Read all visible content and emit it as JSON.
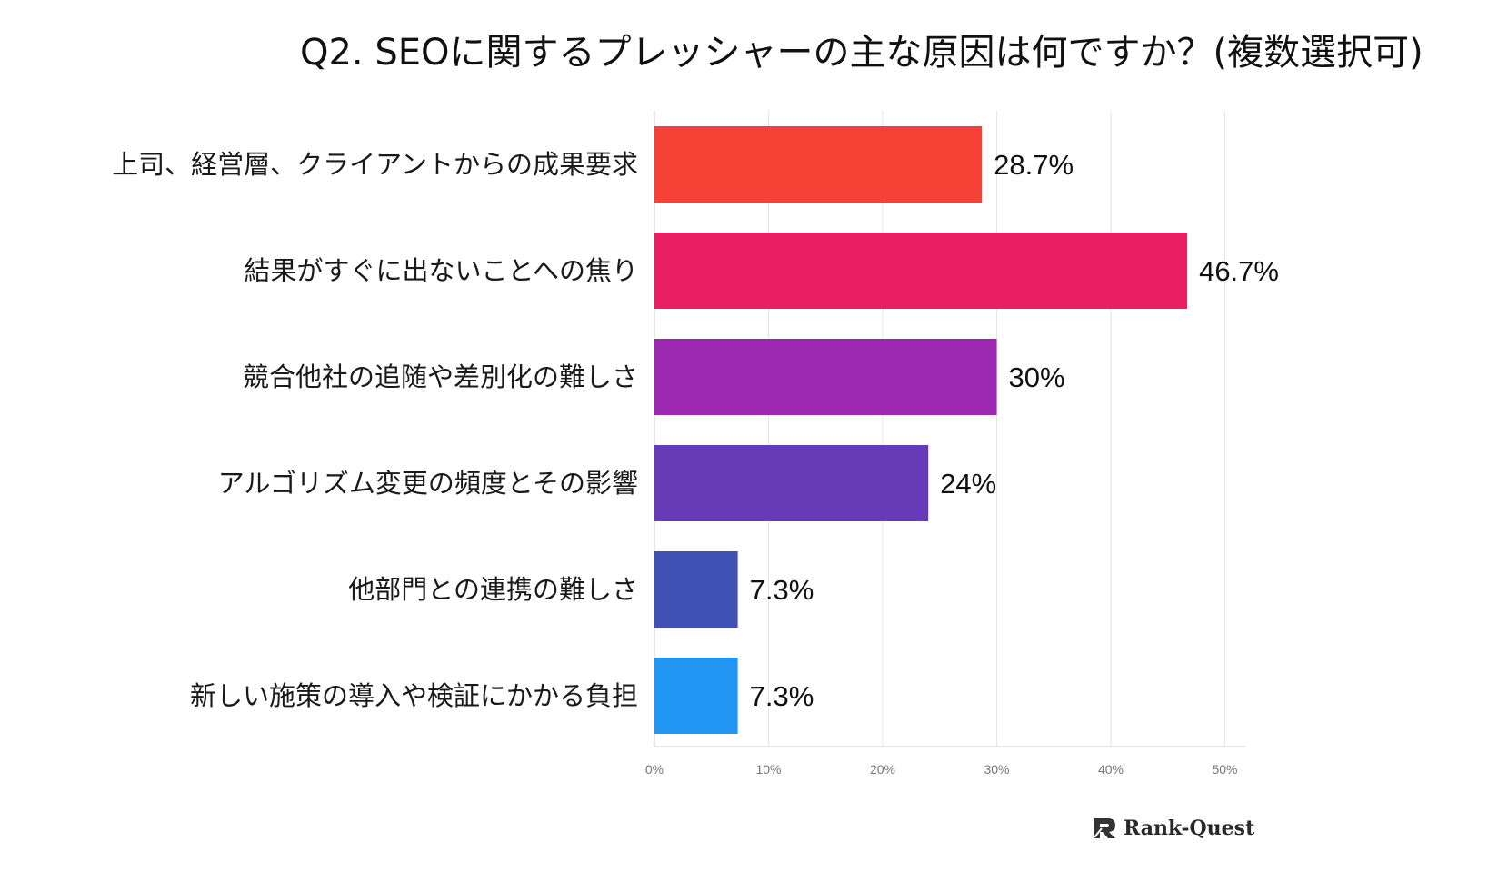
{
  "chart_data": {
    "type": "bar",
    "orientation": "horizontal",
    "title": "Q2. SEOに関するプレッシャーの主な原因は何ですか？(複数選択可)",
    "categories": [
      "上司、経営層、クライアントからの成果要求",
      "結果がすぐに出ないことへの焦り",
      "競合他社の追随や差別化の難しさ",
      "アルゴリズム変更の頻度とその影響",
      "他部門との連携の難しさ",
      "新しい施策の導入や検証にかかる負担"
    ],
    "values": [
      28.7,
      46.7,
      30,
      24,
      7.3,
      7.3
    ],
    "value_labels": [
      "28.7%",
      "46.7%",
      "30%",
      "24%",
      "7.3%",
      "7.3%"
    ],
    "bar_colors": [
      "#f44336",
      "#e91e63",
      "#9c27b0",
      "#673ab7",
      "#3f51b5",
      "#2196f3"
    ],
    "xlim": [
      0,
      52
    ],
    "xticks": [
      0,
      10,
      20,
      30,
      40,
      50
    ],
    "xtick_labels": [
      "0%",
      "10%",
      "20%",
      "30%",
      "40%",
      "50%"
    ],
    "xlabel": "",
    "ylabel": "",
    "grid": true,
    "legend": "none"
  },
  "logo": {
    "text": "Rank-Quest",
    "icon": "rank-quest-logo-icon"
  }
}
